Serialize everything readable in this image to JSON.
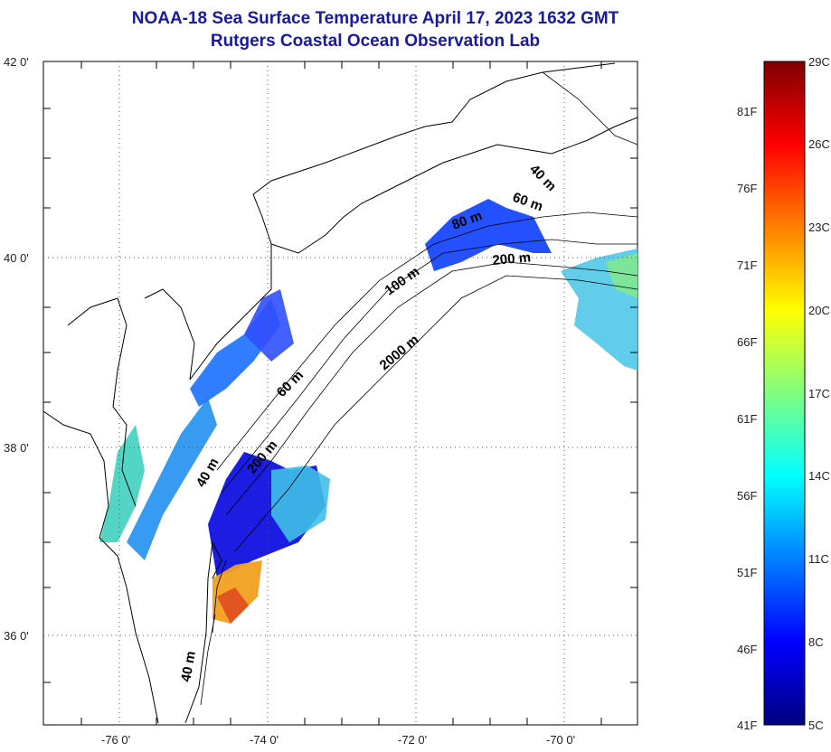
{
  "header": {
    "title": "NOAA-18 Sea Surface Temperature April 17, 2023 1632 GMT",
    "subtitle": "Rutgers Coastal Ocean Observation Lab"
  },
  "map": {
    "lat_labels": [
      "42 0'",
      "40 0'",
      "38 0'",
      "36 0'"
    ],
    "lon_labels": [
      "-76 0'",
      "-74 0'",
      "-72 0'",
      "-70 0'"
    ],
    "lat_range": [
      35,
      42
    ],
    "lon_range": [
      -77,
      -69
    ],
    "depth_labels": [
      "40 m",
      "60 m",
      "80 m",
      "200 m",
      "100 m",
      "2000 m",
      "60 m",
      "200 m",
      "40 m",
      "40 m"
    ],
    "colors": {
      "land": "#ffffff",
      "coast_line": "#000000",
      "grid": "#555555"
    }
  },
  "colorbar": {
    "celsius_labels": [
      "29C",
      "26C",
      "23C",
      "20C",
      "17C",
      "14C",
      "11C",
      "8C",
      "5C"
    ],
    "fahrenheit_labels": [
      "81F",
      "76F",
      "71F",
      "66F",
      "61F",
      "56F",
      "51F",
      "46F",
      "41F"
    ],
    "range_c": [
      5,
      29
    ],
    "colors": [
      "#00007f",
      "#0000ff",
      "#0080ff",
      "#00ffff",
      "#80ff80",
      "#ffff00",
      "#ff8000",
      "#ff0000",
      "#7f0000"
    ]
  }
}
